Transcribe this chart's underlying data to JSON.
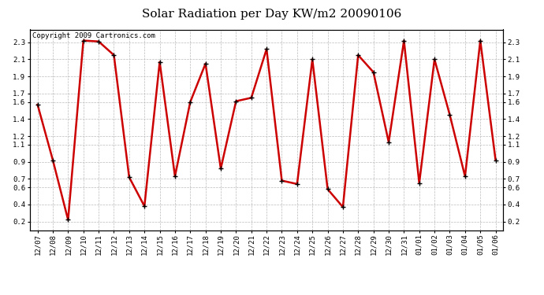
{
  "title": "Solar Radiation per Day KW/m2 20090106",
  "copyright_text": "Copyright 2009 Cartronics.com",
  "dates": [
    "12/07",
    "12/08",
    "12/09",
    "12/10",
    "12/11",
    "12/12",
    "12/13",
    "12/14",
    "12/15",
    "12/16",
    "12/17",
    "12/18",
    "12/19",
    "12/20",
    "12/21",
    "12/22",
    "12/23",
    "12/24",
    "12/25",
    "12/26",
    "12/27",
    "12/28",
    "12/29",
    "12/30",
    "12/31",
    "01/01",
    "01/02",
    "01/03",
    "01/04",
    "01/05",
    "01/06"
  ],
  "values": [
    1.57,
    0.92,
    0.22,
    2.32,
    2.31,
    2.15,
    0.72,
    0.38,
    2.07,
    0.73,
    1.6,
    2.05,
    0.82,
    1.61,
    1.65,
    2.22,
    0.68,
    0.64,
    2.1,
    0.58,
    0.37,
    2.15,
    1.95,
    1.13,
    2.32,
    0.65,
    2.1,
    1.45,
    0.73,
    2.32,
    0.92
  ],
  "line_color": "#cc0000",
  "marker": "+",
  "marker_color": "#000000",
  "marker_size": 5,
  "line_width": 1.8,
  "background_color": "#ffffff",
  "plot_bg_color": "#ffffff",
  "grid_color": "#bbbbbb",
  "grid_style": "--",
  "ylim": [
    0.1,
    2.45
  ],
  "yticks": [
    0.2,
    0.4,
    0.6,
    0.7,
    0.9,
    1.1,
    1.2,
    1.4,
    1.6,
    1.7,
    1.9,
    2.1,
    2.3
  ],
  "title_fontsize": 11,
  "tick_fontsize": 6.5,
  "copyright_fontsize": 6.5
}
